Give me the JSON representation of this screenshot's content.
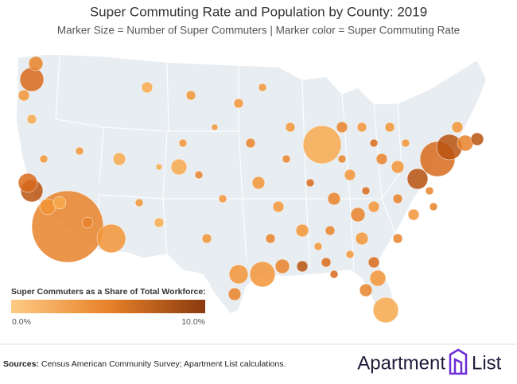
{
  "header": {
    "title": "Super Commuting Rate and Population by County: 2019",
    "subtitle": "Marker Size = Number of Super Commuters  |  Marker color = Super Commuting Rate"
  },
  "legend": {
    "title": "Super Commuters as a Share of Total Workforce:",
    "min_label": "0.0%",
    "max_label": "10.0%"
  },
  "footer": {
    "sources_label": "Sources:",
    "sources_text": "Census American Community Survey; Apartment List calculations.",
    "logo_left": "Apartment",
    "logo_right": "List"
  }
}
